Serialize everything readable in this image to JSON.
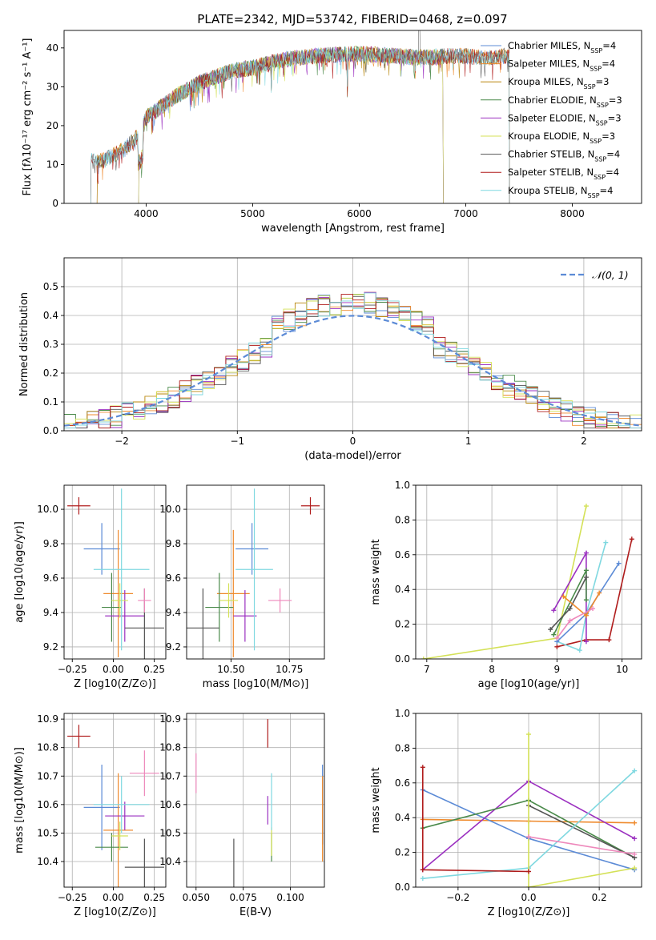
{
  "title": "PLATE=2342, MJD=53742, FIBERID=0468, z=0.097",
  "colors": {
    "chabrier_miles": "#5c8bd6",
    "salpeter_miles": "#ef8a2c",
    "kroupa_miles": "#b8860b",
    "chabrier_elodie": "#4a8a4a",
    "salpeter_elodie": "#9b30c0",
    "kroupa_elodie": "#d4e157",
    "chabrier_stelib": "#555555",
    "salpeter_stelib": "#b01c1c",
    "kroupa_stelib": "#7fd8e0",
    "pink": "#ee88bb",
    "normal_curve": "#5c8bd6"
  },
  "chart_data": [
    {
      "type": "line",
      "id": "spectrum",
      "xlabel": "wavelength [Angstrom, rest frame]",
      "ylabel": "Flux [fλ10⁻¹⁷ erg cm⁻² s⁻¹ A⁻¹]",
      "xlim": [
        3230,
        8650
      ],
      "ylim": [
        0,
        44.5
      ],
      "xticks": [
        4000,
        5000,
        6000,
        7000,
        8000
      ],
      "yticks": [
        0,
        10,
        20,
        30,
        40
      ],
      "grid": false,
      "legend_position": "right",
      "continuum_x": [
        3480,
        3600,
        3800,
        3950,
        4000,
        4100,
        4300,
        4500,
        4800,
        5000,
        5300,
        5600,
        6000,
        6300,
        6600,
        6900,
        7200,
        7400
      ],
      "continuum_y": [
        11,
        11,
        14,
        18,
        22,
        24,
        28,
        31,
        34,
        35,
        37,
        38,
        38.5,
        38,
        37.5,
        38,
        37.5,
        38
      ],
      "series": [
        {
          "name": "Chabrier MILES, N_SSP=4",
          "color_key": "chabrier_miles",
          "xrange": [
            3540,
            7410
          ]
        },
        {
          "name": "Salpeter MILES, N_SSP=4",
          "color_key": "salpeter_miles",
          "xrange": [
            3540,
            7410
          ]
        },
        {
          "name": "Kroupa MILES, N_SSP=3",
          "color_key": "kroupa_miles",
          "xrange": [
            3540,
            7410
          ]
        },
        {
          "name": "Chabrier ELODIE, N_SSP=3",
          "color_key": "chabrier_elodie",
          "xrange": [
            3930,
            6790
          ]
        },
        {
          "name": "Salpeter ELODIE, N_SSP=3",
          "color_key": "salpeter_elodie",
          "xrange": [
            3930,
            6790
          ]
        },
        {
          "name": "Kroupa ELODIE, N_SSP=3",
          "color_key": "kroupa_elodie",
          "xrange": [
            3930,
            6790
          ]
        },
        {
          "name": "Chabrier STELIB, N_SSP=4",
          "color_key": "chabrier_stelib",
          "xrange": [
            3480,
            7410
          ]
        },
        {
          "name": "Salpeter STELIB, N_SSP=4",
          "color_key": "salpeter_stelib",
          "xrange": [
            3480,
            7410
          ]
        },
        {
          "name": "Kroupa STELIB, N_SSP=4",
          "color_key": "kroupa_stelib",
          "xrange": [
            3480,
            7410
          ]
        }
      ]
    },
    {
      "type": "histogram",
      "id": "residuals",
      "xlabel": "(data-model)/error",
      "ylabel": "Normed distribution",
      "xlim": [
        -2.5,
        2.5
      ],
      "ylim": [
        0,
        0.6
      ],
      "xticks": [
        -2,
        -1,
        0,
        1,
        2
      ],
      "yticks": [
        0.0,
        0.1,
        0.2,
        0.3,
        0.4,
        0.5
      ],
      "grid": true,
      "legend_position": "top-right",
      "legend": "𝒩(0, 1)",
      "normal": {
        "mu": 0,
        "sigma": 1
      }
    },
    {
      "type": "errorbar",
      "id": "age_vs_Z",
      "xlabel": "Z [log10(Z/Z⊙)]",
      "ylabel": "age  [log10(age/yr)]",
      "xlim": [
        -0.3,
        0.32
      ],
      "ylim": [
        9.13,
        10.14
      ],
      "xticks": [
        -0.25,
        0.0,
        0.25
      ],
      "yticks": [
        9.2,
        9.4,
        9.6,
        9.8,
        10.0
      ],
      "grid": true,
      "points": [
        {
          "color_key": "chabrier_miles",
          "x": -0.07,
          "xerr": 0.11,
          "y": 9.77,
          "yerr": 0.15
        },
        {
          "color_key": "salpeter_miles",
          "x": 0.03,
          "xerr": 0.09,
          "y": 9.51,
          "yerr": 0.37
        },
        {
          "color_key": "chabrier_elodie",
          "x": -0.01,
          "xerr": 0.06,
          "y": 9.43,
          "yerr": 0.2
        },
        {
          "color_key": "salpeter_elodie",
          "x": 0.07,
          "xerr": 0.12,
          "y": 9.38,
          "yerr": 0.15
        },
        {
          "color_key": "kroupa_elodie",
          "x": 0.04,
          "xerr": 0.05,
          "y": 9.47,
          "yerr": 0.1
        },
        {
          "color_key": "chabrier_stelib",
          "x": 0.19,
          "xerr": 0.12,
          "y": 9.31,
          "yerr": 0.23
        },
        {
          "color_key": "salpeter_stelib",
          "x": -0.21,
          "xerr": 0.07,
          "y": 10.02,
          "yerr": 0.05
        },
        {
          "color_key": "kroupa_stelib",
          "x": 0.05,
          "xerr": 0.17,
          "y": 9.65,
          "yerr": 0.47
        },
        {
          "color_key": "pink",
          "x": 0.19,
          "xerr": 0.04,
          "y": 9.47,
          "yerr": 0.07
        }
      ]
    },
    {
      "type": "errorbar",
      "id": "age_vs_mass",
      "xlabel": "mass [log10(M/M⊙)]",
      "ylabel": "",
      "xlim": [
        10.31,
        10.9
      ],
      "ylim": [
        9.13,
        10.14
      ],
      "xticks": [
        10.5,
        10.75
      ],
      "yticks": [
        9.2,
        9.4,
        9.6,
        9.8,
        10.0
      ],
      "grid": true,
      "points": [
        {
          "color_key": "chabrier_miles",
          "x": 10.59,
          "xerr": 0.07,
          "y": 9.77,
          "yerr": 0.15
        },
        {
          "color_key": "salpeter_miles",
          "x": 10.51,
          "xerr": 0.07,
          "y": 9.51,
          "yerr": 0.37
        },
        {
          "color_key": "chabrier_elodie",
          "x": 10.45,
          "xerr": 0.06,
          "y": 9.43,
          "yerr": 0.2
        },
        {
          "color_key": "salpeter_elodie",
          "x": 10.56,
          "xerr": 0.05,
          "y": 9.38,
          "yerr": 0.15
        },
        {
          "color_key": "kroupa_elodie",
          "x": 10.49,
          "xerr": 0.04,
          "y": 9.47,
          "yerr": 0.1
        },
        {
          "color_key": "chabrier_stelib",
          "x": 10.38,
          "xerr": 0.07,
          "y": 9.31,
          "yerr": 0.23
        },
        {
          "color_key": "salpeter_stelib",
          "x": 10.84,
          "xerr": 0.04,
          "y": 10.02,
          "yerr": 0.05
        },
        {
          "color_key": "kroupa_stelib",
          "x": 10.6,
          "xerr": 0.08,
          "y": 9.65,
          "yerr": 0.47
        },
        {
          "color_key": "pink",
          "x": 10.71,
          "xerr": 0.05,
          "y": 9.47,
          "yerr": 0.07
        }
      ]
    },
    {
      "type": "line",
      "id": "mass_weight_vs_age",
      "xlabel": "age  [log10(age/yr)]",
      "ylabel": "mass weight",
      "xlim": [
        6.83,
        10.3
      ],
      "ylim": [
        0,
        1.0
      ],
      "xticks": [
        7,
        8,
        9,
        10
      ],
      "yticks": [
        0.0,
        0.2,
        0.4,
        0.6,
        0.8,
        1.0
      ],
      "grid": true,
      "series": [
        {
          "color_key": "kroupa_elodie",
          "x": [
            6.95,
            9.0,
            9.45
          ],
          "y": [
            0.0,
            0.12,
            0.88
          ]
        },
        {
          "color_key": "salpeter_stelib",
          "x": [
            9.0,
            9.45,
            9.8,
            10.15
          ],
          "y": [
            0.07,
            0.11,
            0.11,
            0.69
          ]
        },
        {
          "color_key": "kroupa_stelib",
          "x": [
            9.0,
            9.35,
            9.45,
            9.75
          ],
          "y": [
            0.1,
            0.05,
            0.26,
            0.67
          ]
        },
        {
          "color_key": "salpeter_elodie",
          "x": [
            8.95,
            9.45,
            9.45
          ],
          "y": [
            0.28,
            0.61,
            0.1
          ]
        },
        {
          "color_key": "chabrier_elodie",
          "x": [
            8.95,
            9.45,
            9.45
          ],
          "y": [
            0.14,
            0.51,
            0.34
          ]
        },
        {
          "color_key": "chabrier_stelib",
          "x": [
            8.9,
            9.2,
            9.45
          ],
          "y": [
            0.17,
            0.29,
            0.47
          ]
        },
        {
          "color_key": "chabrier_miles",
          "x": [
            9.0,
            9.45,
            9.95
          ],
          "y": [
            0.1,
            0.26,
            0.55
          ]
        },
        {
          "color_key": "salpeter_miles",
          "x": [
            9.1,
            9.45,
            9.65
          ],
          "y": [
            0.36,
            0.25,
            0.38
          ]
        },
        {
          "color_key": "pink",
          "x": [
            9.0,
            9.2,
            9.55
          ],
          "y": [
            0.12,
            0.22,
            0.29
          ]
        }
      ]
    },
    {
      "type": "errorbar",
      "id": "mass_vs_Z",
      "xlabel": "Z [log10(Z/Z⊙)]",
      "ylabel": "mass [log10(M/M⊙)]",
      "xlim": [
        -0.3,
        0.32
      ],
      "ylim": [
        10.31,
        10.92
      ],
      "xticks": [
        -0.25,
        0.0,
        0.25
      ],
      "yticks": [
        10.4,
        10.5,
        10.6,
        10.7,
        10.8,
        10.9
      ],
      "grid": true,
      "points": [
        {
          "color_key": "chabrier_miles",
          "x": -0.07,
          "xerr": 0.11,
          "y": 10.59,
          "yerr": 0.15
        },
        {
          "color_key": "salpeter_miles",
          "x": 0.03,
          "xerr": 0.09,
          "y": 10.51,
          "yerr": 0.2
        },
        {
          "color_key": "chabrier_elodie",
          "x": -0.01,
          "xerr": 0.1,
          "y": 10.45,
          "yerr": 0.05
        },
        {
          "color_key": "salpeter_elodie",
          "x": 0.07,
          "xerr": 0.12,
          "y": 10.56,
          "yerr": 0.05
        },
        {
          "color_key": "kroupa_elodie",
          "x": 0.04,
          "xerr": 0.05,
          "y": 10.49,
          "yerr": 0.05
        },
        {
          "color_key": "chabrier_stelib",
          "x": 0.19,
          "xerr": 0.12,
          "y": 10.38,
          "yerr": 0.1
        },
        {
          "color_key": "salpeter_stelib",
          "x": -0.21,
          "xerr": 0.07,
          "y": 10.84,
          "yerr": 0.04
        },
        {
          "color_key": "kroupa_stelib",
          "x": 0.05,
          "xerr": 0.17,
          "y": 10.6,
          "yerr": 0.1
        },
        {
          "color_key": "pink",
          "x": 0.19,
          "xerr": 0.09,
          "y": 10.71,
          "yerr": 0.08
        }
      ]
    },
    {
      "type": "errorbar",
      "id": "mass_vs_EBV",
      "xlabel": "E(B-V)",
      "ylabel": "",
      "xlim": [
        0.045,
        0.118
      ],
      "ylim": [
        10.31,
        10.92
      ],
      "xticks": [
        0.05,
        0.075,
        0.1
      ],
      "xtick_labels": [
        "0.050",
        "0.075",
        "0.100"
      ],
      "yticks": [
        10.4,
        10.5,
        10.6,
        10.7,
        10.8,
        10.9
      ],
      "grid": true,
      "points": [
        {
          "color_key": "chabrier_miles",
          "x": 0.117,
          "xerr": 0,
          "y": 10.6,
          "yerr": 0.14
        },
        {
          "color_key": "salpeter_miles",
          "x": 0.117,
          "xerr": 0,
          "y": 10.55,
          "yerr": 0.15
        },
        {
          "color_key": "chabrier_elodie",
          "x": 0.09,
          "xerr": 0,
          "y": 10.45,
          "yerr": 0.05
        },
        {
          "color_key": "salpeter_elodie",
          "x": 0.088,
          "xerr": 0,
          "y": 10.58,
          "yerr": 0.05
        },
        {
          "color_key": "kroupa_elodie",
          "x": 0.09,
          "xerr": 0,
          "y": 10.47,
          "yerr": 0.05
        },
        {
          "color_key": "chabrier_stelib",
          "x": 0.07,
          "xerr": 0,
          "y": 10.38,
          "yerr": 0.1
        },
        {
          "color_key": "salpeter_stelib",
          "x": 0.088,
          "xerr": 0,
          "y": 10.85,
          "yerr": 0.05
        },
        {
          "color_key": "kroupa_stelib",
          "x": 0.09,
          "xerr": 0,
          "y": 10.61,
          "yerr": 0.1
        },
        {
          "color_key": "pink",
          "x": 0.05,
          "xerr": 0,
          "y": 10.71,
          "yerr": 0.07
        }
      ]
    },
    {
      "type": "line",
      "id": "mass_weight_vs_Z",
      "xlabel": "Z [log10(Z/Z⊙)]",
      "ylabel": "mass weight",
      "xlim": [
        -0.32,
        0.32
      ],
      "ylim": [
        0,
        1.0
      ],
      "xticks": [
        -0.2,
        0.0,
        0.2
      ],
      "yticks": [
        0.0,
        0.2,
        0.4,
        0.6,
        0.8,
        1.0
      ],
      "grid": true,
      "series": [
        {
          "color_key": "salpeter_miles",
          "x": [
            -0.3,
            0.0,
            0.3
          ],
          "y": [
            0.39,
            0.38,
            0.37
          ]
        },
        {
          "color_key": "chabrier_miles",
          "x": [
            -0.3,
            0.0,
            0.3
          ],
          "y": [
            0.56,
            0.28,
            0.1
          ]
        },
        {
          "color_key": "salpeter_elodie",
          "x": [
            -0.3,
            0.0,
            0.3
          ],
          "y": [
            0.1,
            0.61,
            0.28
          ]
        },
        {
          "color_key": "chabrier_elodie",
          "x": [
            -0.3,
            0.0,
            0.3
          ],
          "y": [
            0.34,
            0.5,
            0.17
          ]
        },
        {
          "color_key": "chabrier_stelib",
          "x": [
            0.0,
            0.3
          ],
          "y": [
            0.47,
            0.17
          ]
        },
        {
          "color_key": "kroupa_stelib",
          "x": [
            -0.3,
            0.0,
            0.3
          ],
          "y": [
            0.05,
            0.11,
            0.67
          ]
        },
        {
          "color_key": "kroupa_elodie",
          "x": [
            0.0,
            0.0,
            0.3
          ],
          "y": [
            0.88,
            0.0,
            0.11
          ]
        },
        {
          "color_key": "pink",
          "x": [
            0.0,
            0.3
          ],
          "y": [
            0.29,
            0.19
          ]
        },
        {
          "color_key": "salpeter_stelib",
          "x": [
            -0.3,
            -0.3,
            0.0
          ],
          "y": [
            0.69,
            0.1,
            0.09
          ]
        }
      ]
    }
  ]
}
